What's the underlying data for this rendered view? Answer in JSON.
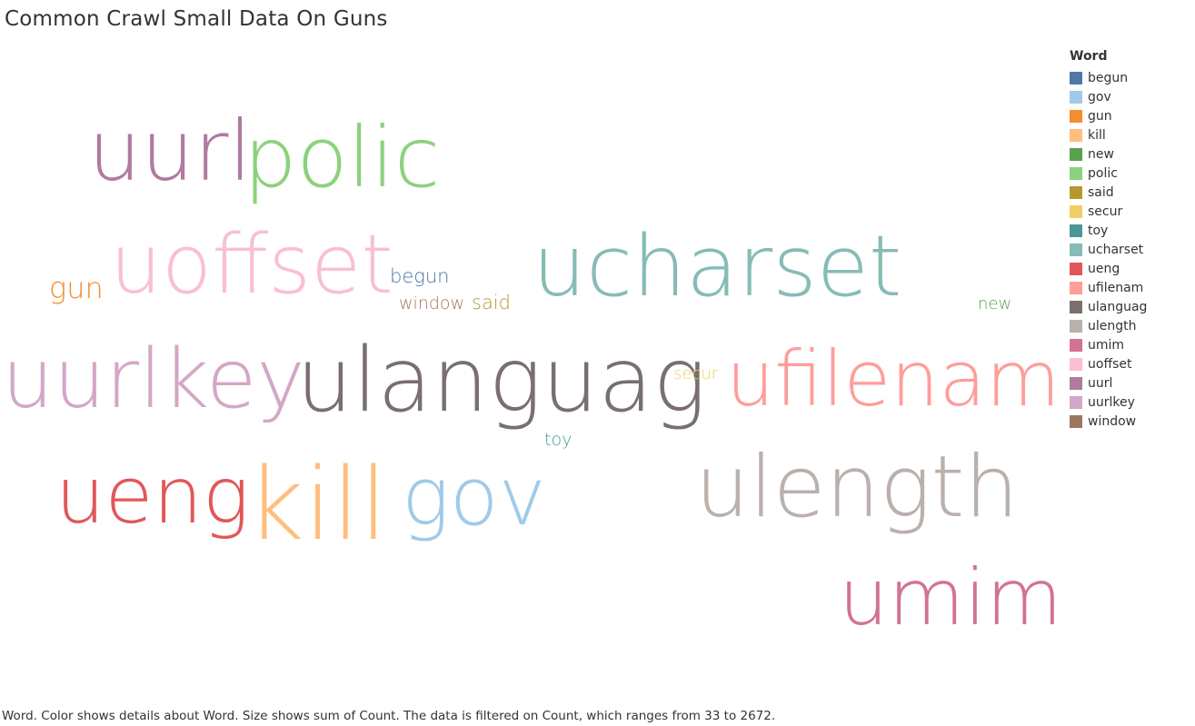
{
  "title": "Common Crawl Small Data On Guns",
  "caption": "Word.  Color shows details about Word.  Size shows sum of Count. The data is filtered on Count, which ranges from 33 to 2672.",
  "legend": {
    "title": "Word",
    "items": [
      {
        "label": "begun",
        "color": "#4e79a7"
      },
      {
        "label": "gov",
        "color": "#a0cbe8"
      },
      {
        "label": "gun",
        "color": "#f28e2b"
      },
      {
        "label": "kill",
        "color": "#ffbe7d"
      },
      {
        "label": "new",
        "color": "#59a14f"
      },
      {
        "label": "polic",
        "color": "#8cd17d"
      },
      {
        "label": "said",
        "color": "#b6992d"
      },
      {
        "label": "secur",
        "color": "#f1ce63"
      },
      {
        "label": "toy",
        "color": "#499894"
      },
      {
        "label": "ucharset",
        "color": "#86bcb6"
      },
      {
        "label": "ueng",
        "color": "#e15759"
      },
      {
        "label": "ufilenam",
        "color": "#ff9d9a"
      },
      {
        "label": "ulanguag",
        "color": "#79706e"
      },
      {
        "label": "ulength",
        "color": "#bab0ac"
      },
      {
        "label": "umim",
        "color": "#d37295"
      },
      {
        "label": "uoffset",
        "color": "#fabfd2"
      },
      {
        "label": "uurl",
        "color": "#b07aa1"
      },
      {
        "label": "uurlkey",
        "color": "#d4a6c8"
      },
      {
        "label": "window",
        "color": "#9d7660"
      }
    ]
  },
  "chart_data": {
    "type": "wordcloud",
    "title": "Common Crawl Small Data On Guns",
    "color_by": "Word",
    "size_by": "sum of Count",
    "count_range": [
      33,
      2672
    ],
    "words": [
      {
        "word": "uurl",
        "color": "#b07aa1",
        "count": 2000
      },
      {
        "word": "polic",
        "color": "#8cd17d",
        "count": 2050
      },
      {
        "word": "uoffset",
        "color": "#fabfd2",
        "count": 2050
      },
      {
        "word": "begun",
        "color": "#4e79a7",
        "count": 120
      },
      {
        "word": "ucharset",
        "color": "#86bcb6",
        "count": 2350
      },
      {
        "word": "gun",
        "color": "#f28e2b",
        "count": 200
      },
      {
        "word": "window",
        "color": "#9d7660",
        "count": 100
      },
      {
        "word": "said",
        "color": "#b6992d",
        "count": 110
      },
      {
        "word": "new",
        "color": "#59a14f",
        "count": 50
      },
      {
        "word": "uurlkey",
        "color": "#d4a6c8",
        "count": 2250
      },
      {
        "word": "ulanguag",
        "color": "#79706e",
        "count": 2500
      },
      {
        "word": "secur",
        "color": "#f1ce63",
        "count": 60
      },
      {
        "word": "ufilenam",
        "color": "#ff9d9a",
        "count": 2350
      },
      {
        "word": "toy",
        "color": "#499894",
        "count": 33
      },
      {
        "word": "ueng",
        "color": "#e15759",
        "count": 2000
      },
      {
        "word": "kill",
        "color": "#ffbe7d",
        "count": 2672
      },
      {
        "word": "gov",
        "color": "#a0cbe8",
        "count": 2100
      },
      {
        "word": "ulength",
        "color": "#bab0ac",
        "count": 2350
      },
      {
        "word": "umim",
        "color": "#d37295",
        "count": 2150
      }
    ]
  }
}
